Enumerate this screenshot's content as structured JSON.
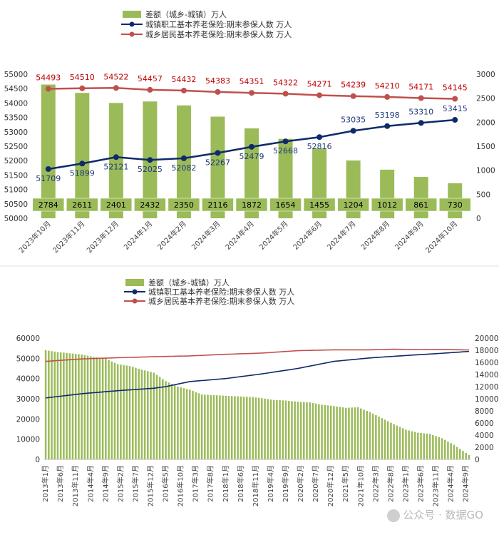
{
  "chart_data": [
    {
      "type": "bar+line",
      "title": "",
      "legend": [
        {
          "name": "差额（城乡-城镇）万人",
          "kind": "bar",
          "color": "#9bbb59"
        },
        {
          "name": "城镇职工基本养老保险:期末参保人数 万人",
          "kind": "line",
          "color": "#0f2a6b"
        },
        {
          "name": "城乡居民基本养老保险:期末参保人数 万人",
          "kind": "line",
          "color": "#c0504d"
        }
      ],
      "legend_position": "top-center",
      "categories": [
        "2023年10月",
        "2023年11月",
        "2023年12月",
        "2024年1月",
        "2024年2月",
        "2024年3月",
        "2024年4月",
        "2024年5月",
        "2024年6月",
        "2024年7月",
        "2024年8月",
        "2024年9月",
        "2024年10月"
      ],
      "series": [
        {
          "name": "差额（城乡-城镇）万人",
          "axis": "right",
          "values": [
            2784,
            2611,
            2401,
            2432,
            2350,
            2116,
            1872,
            1654,
            1455,
            1204,
            1012,
            861,
            730
          ]
        },
        {
          "name": "城镇职工基本养老保险:期末参保人数 万人",
          "axis": "left",
          "values": [
            51709,
            51899,
            52121,
            52025,
            52082,
            52267,
            52479,
            52668,
            52816,
            53035,
            53198,
            53310,
            53415
          ]
        },
        {
          "name": "城乡居民基本养老保险:期末参保人数 万人",
          "axis": "left",
          "values": [
            54493,
            54510,
            54522,
            54457,
            54432,
            54383,
            54351,
            54322,
            54271,
            54239,
            54210,
            54171,
            54145
          ]
        }
      ],
      "left_axis": {
        "min": 50000,
        "max": 55000,
        "ticks": [
          "50000",
          "50500",
          "51000",
          "51500",
          "52000",
          "52500",
          "53000",
          "53500",
          "54000",
          "54500",
          "55000"
        ]
      },
      "right_axis": {
        "min": 0,
        "max": 3000,
        "ticks": [
          "0",
          "500",
          "1000",
          "1500",
          "2000",
          "2500",
          "3000"
        ]
      }
    },
    {
      "type": "bar+line",
      "title": "",
      "legend": [
        {
          "name": "差额（城乡-城镇）万人",
          "kind": "bar",
          "color": "#9bbb59"
        },
        {
          "name": "城镇职工基本养老保险:期末参保人数 万人",
          "kind": "line",
          "color": "#0f2a6b"
        },
        {
          "name": "城乡居民基本养老保险:期末参保人数 万人",
          "kind": "line",
          "color": "#c0504d"
        }
      ],
      "legend_position": "top-center",
      "x_tick_labels": [
        "2013年1月",
        "2013年6月",
        "2013年11月",
        "2014年4月",
        "2014年9月",
        "2015年2月",
        "2015年7月",
        "2015年12月",
        "2016年5月",
        "2016年10月",
        "2017年3月",
        "2017年8月",
        "2018年1月",
        "2018年6月",
        "2018年11月",
        "2019年4月",
        "2019年9月",
        "2020年2月",
        "2020年7月",
        "2020年12月",
        "2021年5月",
        "2021年10月",
        "2022年3月",
        "2022年8月",
        "2023年1月",
        "2023年6月",
        "2023年11月",
        "2024年4月",
        "2024年9月"
      ],
      "n_months": 142,
      "bar_keypoints": [
        [
          0,
          18000
        ],
        [
          4,
          17700
        ],
        [
          8,
          17500
        ],
        [
          12,
          17300
        ],
        [
          16,
          16900
        ],
        [
          20,
          16600
        ],
        [
          24,
          15700
        ],
        [
          28,
          15400
        ],
        [
          32,
          14800
        ],
        [
          36,
          14300
        ],
        [
          40,
          12900
        ],
        [
          44,
          12000
        ],
        [
          48,
          11500
        ],
        [
          52,
          10700
        ],
        [
          56,
          10600
        ],
        [
          60,
          10500
        ],
        [
          64,
          10400
        ],
        [
          68,
          10300
        ],
        [
          72,
          10100
        ],
        [
          76,
          9800
        ],
        [
          80,
          9700
        ],
        [
          84,
          9500
        ],
        [
          88,
          9400
        ],
        [
          92,
          9000
        ],
        [
          96,
          8800
        ],
        [
          100,
          8500
        ],
        [
          104,
          8600
        ],
        [
          108,
          7800
        ],
        [
          112,
          6800
        ],
        [
          116,
          5800
        ],
        [
          120,
          4900
        ],
        [
          124,
          4400
        ],
        [
          128,
          4200
        ],
        [
          132,
          3500
        ],
        [
          136,
          2400
        ],
        [
          141,
          730
        ]
      ],
      "urban_keypoints": [
        [
          0,
          30400
        ],
        [
          12,
          32500
        ],
        [
          24,
          34000
        ],
        [
          36,
          35200
        ],
        [
          40,
          36000
        ],
        [
          48,
          38500
        ],
        [
          60,
          40000
        ],
        [
          72,
          42300
        ],
        [
          84,
          45000
        ],
        [
          96,
          48500
        ],
        [
          108,
          50200
        ],
        [
          120,
          51400
        ],
        [
          132,
          52500
        ],
        [
          141,
          53415
        ]
      ],
      "rural_keypoints": [
        [
          0,
          48500
        ],
        [
          12,
          49700
        ],
        [
          24,
          50300
        ],
        [
          36,
          50800
        ],
        [
          48,
          51200
        ],
        [
          60,
          52000
        ],
        [
          72,
          52600
        ],
        [
          84,
          53800
        ],
        [
          96,
          54200
        ],
        [
          108,
          54200
        ],
        [
          116,
          54500
        ],
        [
          124,
          54300
        ],
        [
          132,
          54400
        ],
        [
          141,
          54145
        ]
      ],
      "left_axis": {
        "min": 0,
        "max": 60000,
        "ticks": [
          "0",
          "10000",
          "20000",
          "30000",
          "40000",
          "50000",
          "60000"
        ]
      },
      "right_axis": {
        "min": 0,
        "max": 20000,
        "ticks": [
          "0",
          "2000",
          "4000",
          "6000",
          "8000",
          "10000",
          "12000",
          "14000",
          "16000",
          "18000",
          "20000"
        ]
      }
    }
  ],
  "watermark": {
    "text": "公众号 · 数据GO",
    "icon": "wechat-icon"
  }
}
